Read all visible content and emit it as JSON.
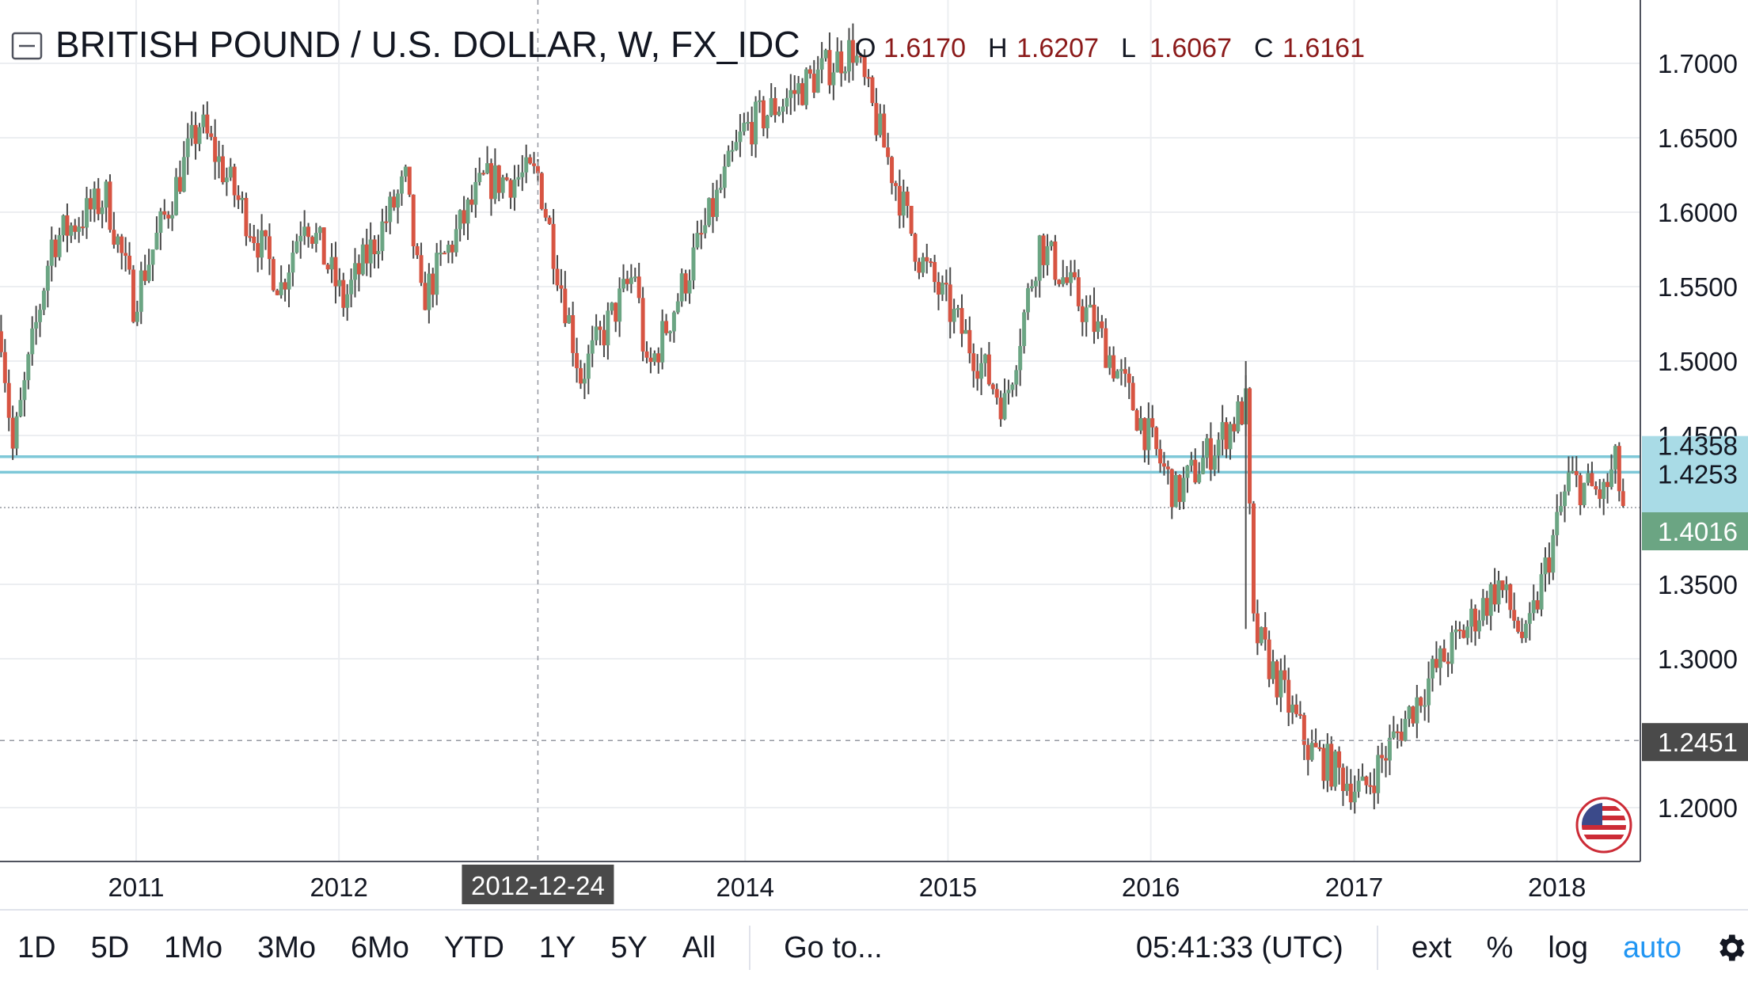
{
  "header": {
    "symbol_title": "BRITISH POUND / U.S. DOLLAR, W, FX_IDC",
    "ohlc": [
      {
        "label": "O",
        "value": "1.6170"
      },
      {
        "label": "H",
        "value": "1.6207"
      },
      {
        "label": "L",
        "value": "1.6067"
      },
      {
        "label": "C",
        "value": "1.6161"
      }
    ]
  },
  "price_axis": {
    "ticks": [
      "1.7000",
      "1.6500",
      "1.6000",
      "1.5500",
      "1.5000",
      "1.4500",
      "1.3500",
      "1.3000",
      "1.2000"
    ],
    "labels": {
      "resistance_upper": "1.4358",
      "resistance_lower": "1.4253",
      "last_price": "1.4016",
      "crosshair_price": "1.2451"
    }
  },
  "time_axis": {
    "ticks": [
      "2011",
      "2012",
      "2014",
      "2015",
      "2016",
      "2017",
      "2018"
    ],
    "crosshair_date": "2012-12-24"
  },
  "toolbar": {
    "ranges": [
      "1D",
      "5D",
      "1Mo",
      "3Mo",
      "6Mo",
      "YTD",
      "1Y",
      "5Y",
      "All"
    ],
    "goto": "Go to...",
    "time": "05:41:33 (UTC)",
    "ext": "ext",
    "percent": "%",
    "log": "log",
    "auto": "auto"
  },
  "colors": {
    "up": "#6ba583",
    "down": "#d75442",
    "wick": "#4a4a4a",
    "resistance": "#7ec8d8",
    "resistance_label_bg": "#a9dbe6",
    "last_label_bg": "#6ba583",
    "crosshair_label_bg": "#4a4a4a",
    "accent": "#2196f3"
  },
  "chart_data": {
    "type": "ohlc",
    "title": "BRITISH POUND / U.S. DOLLAR, W, FX_IDC",
    "interval": "W",
    "x_range": [
      "2010-05-01",
      "2018-05-31"
    ],
    "y_range": [
      1.16,
      1.72
    ],
    "grid": true,
    "current_bar": {
      "open": 1.617,
      "high": 1.6207,
      "low": 1.6067,
      "close": 1.6161
    },
    "horizontal_lines": [
      1.4358,
      1.4253
    ],
    "last_price": 1.4016,
    "crosshair": {
      "date": "2012-12-24",
      "price": 1.2451
    },
    "anchors": [
      {
        "date": "2010-05-03",
        "close": 1.52
      },
      {
        "date": "2010-05-24",
        "close": 1.44
      },
      {
        "date": "2010-08-02",
        "close": 1.58
      },
      {
        "date": "2010-11-08",
        "close": 1.61
      },
      {
        "date": "2010-12-27",
        "close": 1.54
      },
      {
        "date": "2011-04-25",
        "close": 1.66
      },
      {
        "date": "2011-09-19",
        "close": 1.55
      },
      {
        "date": "2011-10-31",
        "close": 1.6
      },
      {
        "date": "2012-01-09",
        "close": 1.54
      },
      {
        "date": "2012-04-30",
        "close": 1.62
      },
      {
        "date": "2012-05-28",
        "close": 1.54
      },
      {
        "date": "2012-09-17",
        "close": 1.62
      },
      {
        "date": "2012-12-24",
        "close": 1.625
      },
      {
        "date": "2013-03-11",
        "close": 1.49
      },
      {
        "date": "2013-06-17",
        "close": 1.56
      },
      {
        "date": "2013-07-08",
        "close": 1.49
      },
      {
        "date": "2013-12-30",
        "close": 1.655
      },
      {
        "date": "2014-07-14",
        "close": 1.71
      },
      {
        "date": "2014-11-10",
        "close": 1.57
      },
      {
        "date": "2015-04-13",
        "close": 1.47
      },
      {
        "date": "2015-06-15",
        "close": 1.58
      },
      {
        "date": "2015-09-28",
        "close": 1.52
      },
      {
        "date": "2016-02-15",
        "close": 1.41
      },
      {
        "date": "2016-06-20",
        "close": 1.47
      },
      {
        "date": "2016-07-04",
        "close": 1.32
      },
      {
        "date": "2016-10-10",
        "close": 1.24
      },
      {
        "date": "2017-01-16",
        "close": 1.21
      },
      {
        "date": "2017-05-22",
        "close": 1.29
      },
      {
        "date": "2017-09-18",
        "close": 1.35
      },
      {
        "date": "2017-11-06",
        "close": 1.31
      },
      {
        "date": "2018-01-22",
        "close": 1.42
      },
      {
        "date": "2018-03-26",
        "close": 1.41
      },
      {
        "date": "2018-04-16",
        "close": 1.43
      },
      {
        "date": "2018-04-30",
        "close": 1.4016
      }
    ]
  }
}
